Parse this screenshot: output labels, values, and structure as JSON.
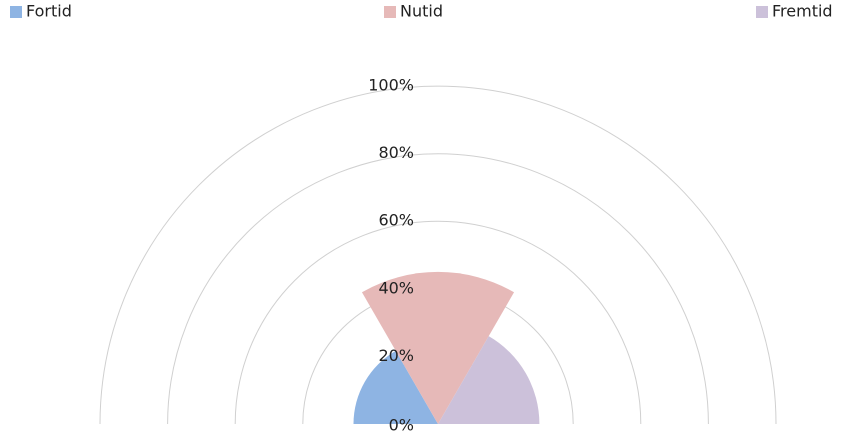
{
  "chart_data": {
    "type": "polar-area",
    "series": [
      {
        "name": "Fortid",
        "color": "#8eb4e3",
        "values": [
          25
        ]
      },
      {
        "name": "Nutid",
        "color": "#e6b9b8",
        "values": [
          45
        ]
      },
      {
        "name": "Fremtid",
        "color": "#ccc1da",
        "values": [
          30
        ]
      }
    ],
    "rlim": [
      0,
      100
    ],
    "rticks": [
      {
        "value": 0,
        "label": "0%"
      },
      {
        "value": 20,
        "label": "20%"
      },
      {
        "value": 40,
        "label": "40%"
      },
      {
        "value": 60,
        "label": "60%"
      },
      {
        "value": 80,
        "label": "80%"
      },
      {
        "value": 100,
        "label": "100%"
      }
    ],
    "grid": true,
    "legend": "top"
  }
}
